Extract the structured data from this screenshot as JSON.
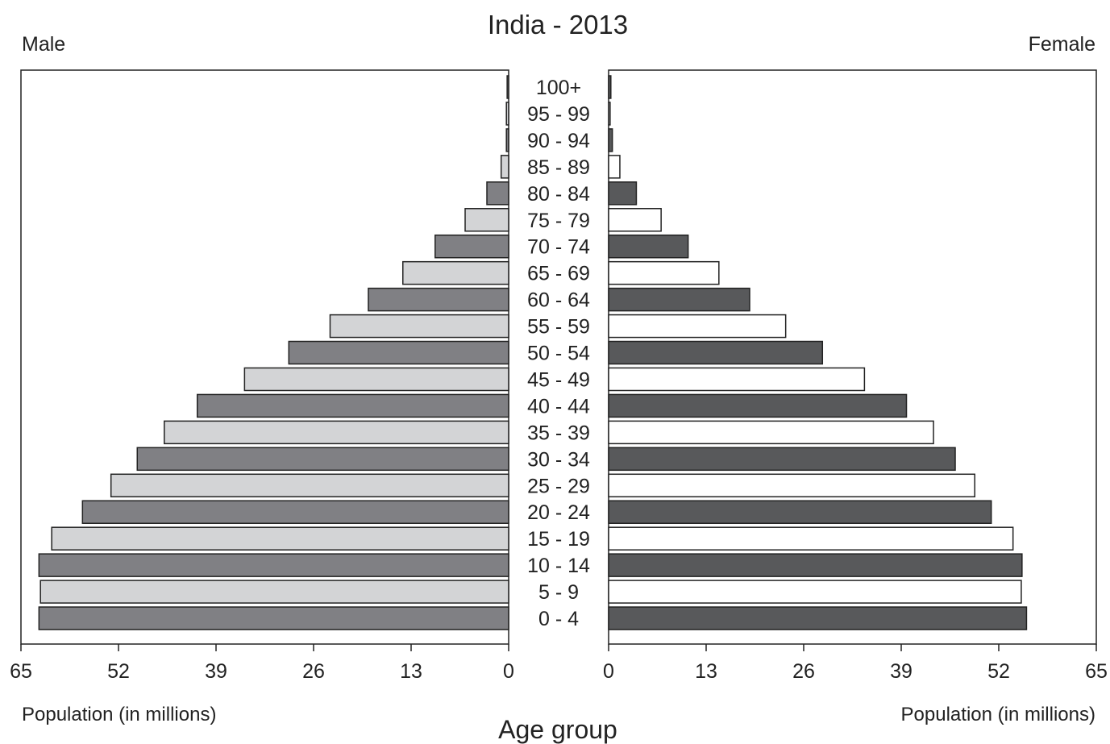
{
  "chart_data": {
    "type": "bar",
    "title": "India - 2013",
    "left_panel_label": "Male",
    "right_panel_label": "Female",
    "left_xlabel": "Population (in millions)",
    "right_xlabel": "Population (in millions)",
    "center_label": "Age group",
    "xlim": [
      0,
      65
    ],
    "tick_labels": [
      "0",
      "13",
      "26",
      "39",
      "52",
      "65"
    ],
    "categories": [
      "100+",
      "95 - 99",
      "90 - 94",
      "85 - 89",
      "80 - 84",
      "75 - 79",
      "70 - 74",
      "65 - 69",
      "60 - 64",
      "55 - 59",
      "50 - 54",
      "45 - 49",
      "40 - 44",
      "35 - 39",
      "30 - 34",
      "25 - 29",
      "20 - 24",
      "15 - 19",
      "10 - 14",
      "5 - 9",
      "0 - 4"
    ],
    "series": [
      {
        "name": "Male",
        "values": [
          0.2,
          0.3,
          0.3,
          1.0,
          2.9,
          5.8,
          9.8,
          14.1,
          18.7,
          23.8,
          29.3,
          35.2,
          41.5,
          45.9,
          49.5,
          53.0,
          56.8,
          60.9,
          62.6,
          62.4,
          62.6
        ],
        "colors": [
          "#808084",
          "#d3d4d6"
        ]
      },
      {
        "name": "Female",
        "values": [
          0.3,
          0.2,
          0.5,
          1.5,
          3.7,
          7.0,
          10.6,
          14.7,
          18.8,
          23.6,
          28.5,
          34.1,
          39.7,
          43.3,
          46.2,
          48.8,
          51.0,
          53.9,
          55.1,
          55.0,
          55.7
        ],
        "colors": [
          "#58595b",
          "#ffffff"
        ]
      }
    ],
    "grid": false,
    "legend": "none"
  }
}
